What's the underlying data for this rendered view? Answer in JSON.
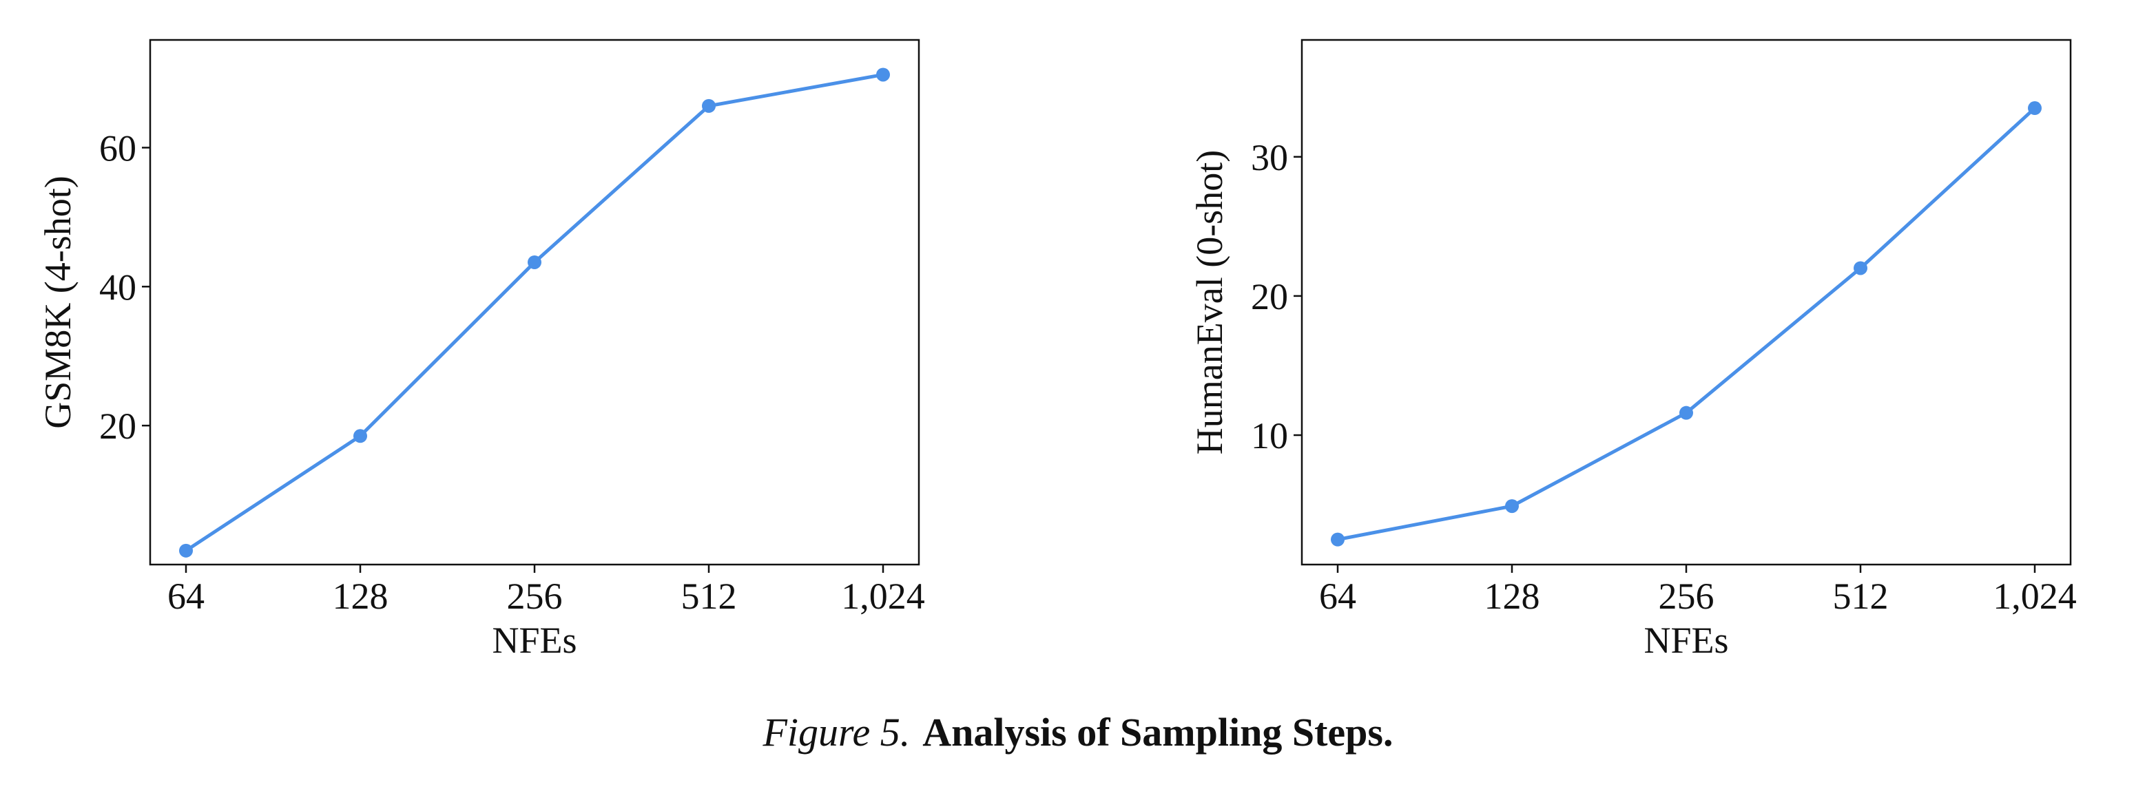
{
  "figure": {
    "number": "Figure 5.",
    "title": "Analysis of Sampling Steps."
  },
  "colors": {
    "line": "#4a90e8",
    "axis": "#111111"
  },
  "chart_data": [
    {
      "type": "line",
      "title": "",
      "xlabel": "NFEs",
      "ylabel": "GSM8K (4-shot)",
      "categories": [
        "64",
        "128",
        "256",
        "512",
        "1,024"
      ],
      "values": [
        2.0,
        18.5,
        43.5,
        66.0,
        70.5
      ],
      "ylim": [
        0,
        75.5
      ],
      "yticks": [
        20,
        40,
        60
      ],
      "grid": false,
      "legend": false
    },
    {
      "type": "line",
      "title": "",
      "xlabel": "NFEs",
      "ylabel": "HumanEval (0-shot)",
      "categories": [
        "64",
        "128",
        "256",
        "512",
        "1,024"
      ],
      "values": [
        2.5,
        4.9,
        11.6,
        22.0,
        33.5
      ],
      "ylim": [
        0.7,
        38.4
      ],
      "yticks": [
        10,
        20,
        30
      ],
      "grid": false,
      "legend": false
    }
  ]
}
